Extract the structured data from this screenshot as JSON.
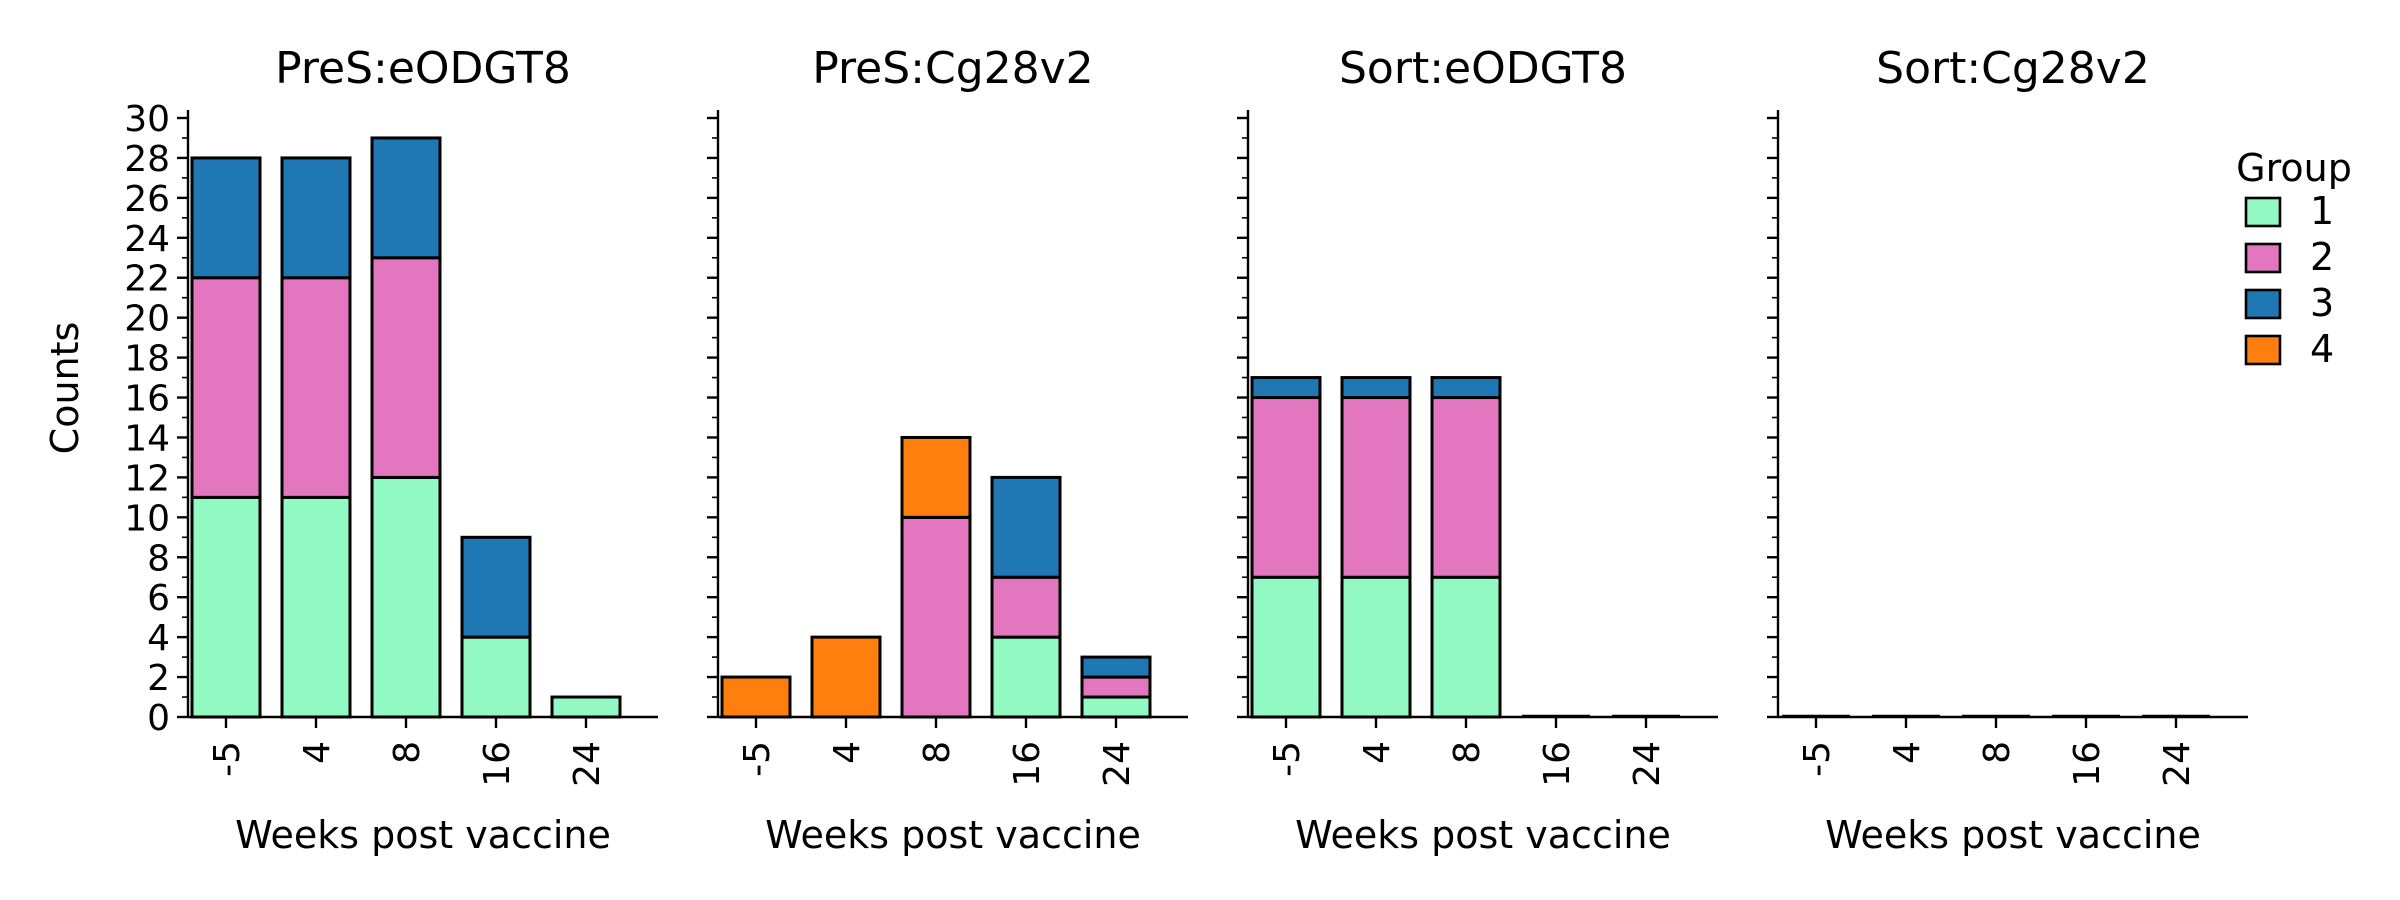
{
  "figure": {
    "ylabel": "Counts",
    "legend_title": "Group",
    "legend_placement": "top-right"
  },
  "colors": {
    "1": "#93f9c3",
    "2": "#e277c0",
    "3": "#1f77b4",
    "4": "#ff7f0e",
    "edge": "#000000"
  },
  "chart_data": [
    {
      "type": "bar",
      "stacked": true,
      "title": "PreS:eODGT8",
      "xlabel": "Weeks post vaccine",
      "ylabel": "Counts",
      "categories": [
        "-5",
        "4",
        "8",
        "16",
        "24"
      ],
      "ylim": [
        0,
        30.5
      ],
      "series": [
        {
          "name": "1",
          "values": [
            11,
            11,
            12,
            4,
            1
          ]
        },
        {
          "name": "2",
          "values": [
            11,
            11,
            11,
            0,
            0
          ]
        },
        {
          "name": "3",
          "values": [
            6,
            6,
            6,
            5,
            0
          ]
        },
        {
          "name": "4",
          "values": [
            0,
            0,
            0,
            0,
            0
          ]
        }
      ]
    },
    {
      "type": "bar",
      "stacked": true,
      "title": "PreS:Cg28v2",
      "xlabel": "Weeks post vaccine",
      "categories": [
        "-5",
        "4",
        "8",
        "16",
        "24"
      ],
      "ylim": [
        0,
        30.5
      ],
      "series": [
        {
          "name": "1",
          "values": [
            0,
            0,
            0,
            4,
            1
          ]
        },
        {
          "name": "2",
          "values": [
            0,
            0,
            10,
            3,
            1
          ]
        },
        {
          "name": "3",
          "values": [
            0,
            0,
            0,
            5,
            1
          ]
        },
        {
          "name": "4",
          "values": [
            2,
            4,
            4,
            0,
            0
          ]
        }
      ]
    },
    {
      "type": "bar",
      "stacked": true,
      "title": "Sort:eODGT8",
      "xlabel": "Weeks post vaccine",
      "categories": [
        "-5",
        "4",
        "8",
        "16",
        "24"
      ],
      "ylim": [
        0,
        30.5
      ],
      "series": [
        {
          "name": "1",
          "values": [
            7,
            7,
            7,
            0,
            0
          ]
        },
        {
          "name": "2",
          "values": [
            9,
            9,
            9,
            0,
            0
          ]
        },
        {
          "name": "3",
          "values": [
            1,
            1,
            1,
            0,
            0
          ]
        },
        {
          "name": "4",
          "values": [
            0,
            0,
            0,
            0,
            0
          ]
        }
      ]
    },
    {
      "type": "bar",
      "stacked": true,
      "title": "Sort:Cg28v2",
      "xlabel": "Weeks post vaccine",
      "categories": [
        "-5",
        "4",
        "8",
        "16",
        "24"
      ],
      "ylim": [
        0,
        30.5
      ],
      "series": [
        {
          "name": "1",
          "values": [
            0,
            0,
            0,
            0,
            0
          ]
        },
        {
          "name": "2",
          "values": [
            0,
            0,
            0,
            0,
            0
          ]
        },
        {
          "name": "3",
          "values": [
            0,
            0,
            0,
            0,
            0
          ]
        },
        {
          "name": "4",
          "values": [
            0,
            0,
            0,
            0,
            0
          ]
        }
      ]
    }
  ],
  "y_ticks_labeled": [
    0,
    2,
    4,
    6,
    8,
    10,
    12,
    14,
    16,
    18,
    20,
    22,
    24,
    26,
    28,
    30
  ],
  "y_ticks_minor": [
    1,
    3,
    5,
    7,
    9,
    11,
    13,
    15,
    17,
    19,
    21,
    23,
    25,
    27,
    29
  ],
  "legend": [
    {
      "label": "1",
      "color_key": "1"
    },
    {
      "label": "2",
      "color_key": "2"
    },
    {
      "label": "3",
      "color_key": "3"
    },
    {
      "label": "4",
      "color_key": "4"
    }
  ]
}
